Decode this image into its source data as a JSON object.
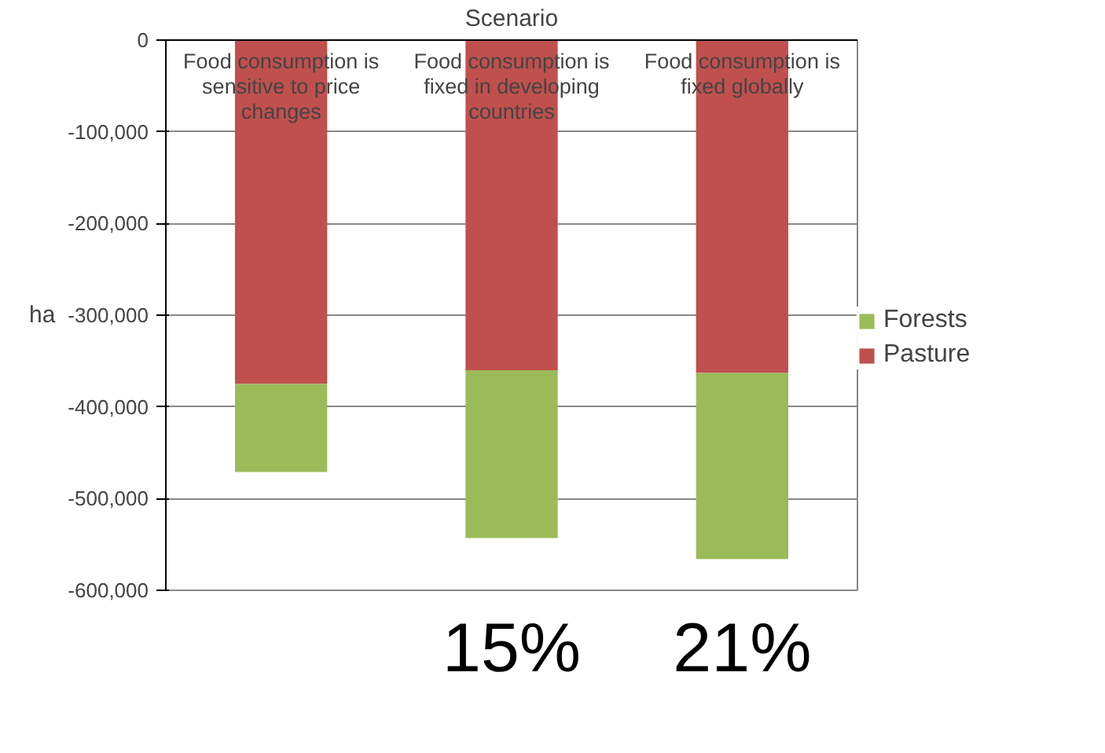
{
  "chart_data": {
    "type": "bar",
    "stacked": true,
    "xlabel": "Scenario",
    "ylabel": "ha",
    "categories": [
      "Food consumption is sensitive to price changes",
      "Food consumption is fixed in developing countries",
      "Food consumption is fixed globally"
    ],
    "series": [
      {
        "name": "Pasture",
        "color": "#c0504d",
        "values": [
          -375000,
          -360000,
          -363000
        ]
      },
      {
        "name": "Forests",
        "color": "#9bbb59",
        "values": [
          -96000,
          -183000,
          -203000
        ]
      }
    ],
    "ylim": [
      -600000,
      0
    ],
    "yticks": [
      {
        "value": -600000,
        "label": "-600,000"
      },
      {
        "value": -500000,
        "label": "-500,000"
      },
      {
        "value": -400000,
        "label": "-400,000"
      },
      {
        "value": -300000,
        "label": "-300,000"
      },
      {
        "value": -200000,
        "label": "-200,000"
      },
      {
        "value": -100000,
        "label": "-100,000"
      },
      0
    ],
    "grid": "y",
    "legend": "right",
    "annotations": [
      "15%",
      "21%"
    ]
  }
}
